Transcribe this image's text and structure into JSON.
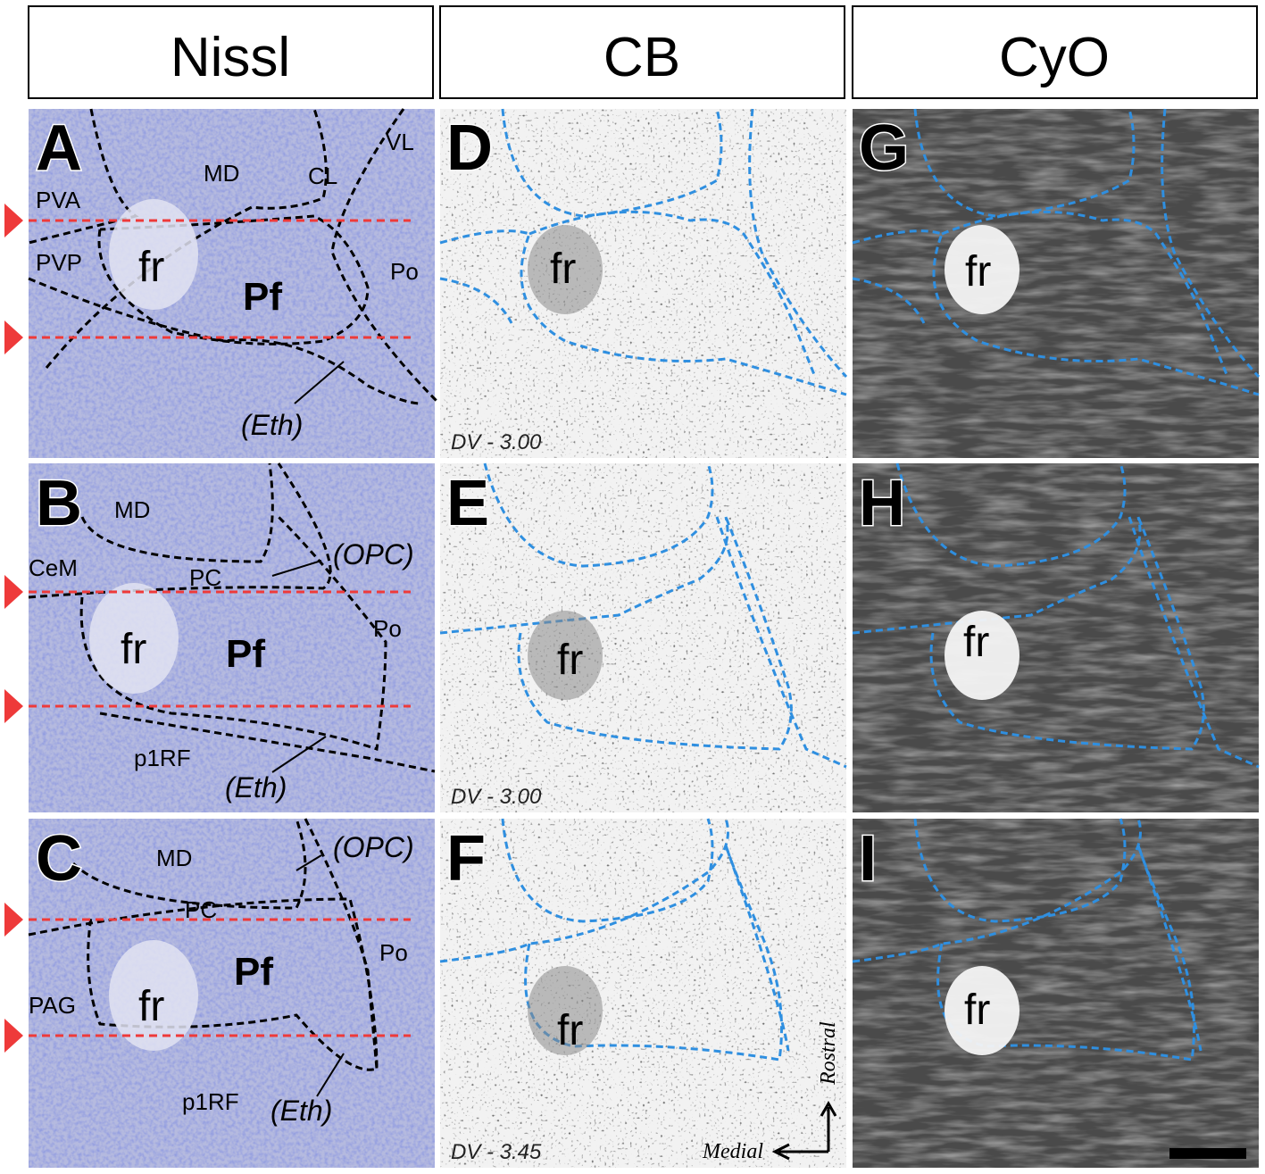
{
  "headers": [
    "Nissl",
    "CB",
    "CyO"
  ],
  "panels": [
    {
      "letter": "A",
      "labels": [
        "PVA",
        "MD",
        "CL",
        "VL",
        "PVP",
        "fr",
        "Pf",
        "Po",
        "(Eth)"
      ]
    },
    {
      "letter": "B",
      "labels": [
        "MD",
        "CeM",
        "PC",
        "(OPC)",
        "fr",
        "Pf",
        "Po",
        "p1RF",
        "(Eth)"
      ]
    },
    {
      "letter": "C",
      "labels": [
        "MD",
        "(OPC)",
        "PC",
        "Po",
        "Pf",
        "PAG",
        "fr",
        "p1RF",
        "(Eth)"
      ]
    },
    {
      "letter": "D",
      "labels": [
        "fr"
      ],
      "dv": "DV - 3.00"
    },
    {
      "letter": "E",
      "labels": [
        "fr"
      ],
      "dv": "DV - 3.00"
    },
    {
      "letter": "F",
      "labels": [
        "fr"
      ],
      "dv": "DV - 3.45"
    },
    {
      "letter": "G",
      "labels": [
        "fr"
      ]
    },
    {
      "letter": "H",
      "labels": [
        "fr"
      ]
    },
    {
      "letter": "I",
      "labels": [
        "fr"
      ]
    }
  ],
  "orientation": {
    "rostral": "Rostral",
    "medial": "Medial"
  }
}
